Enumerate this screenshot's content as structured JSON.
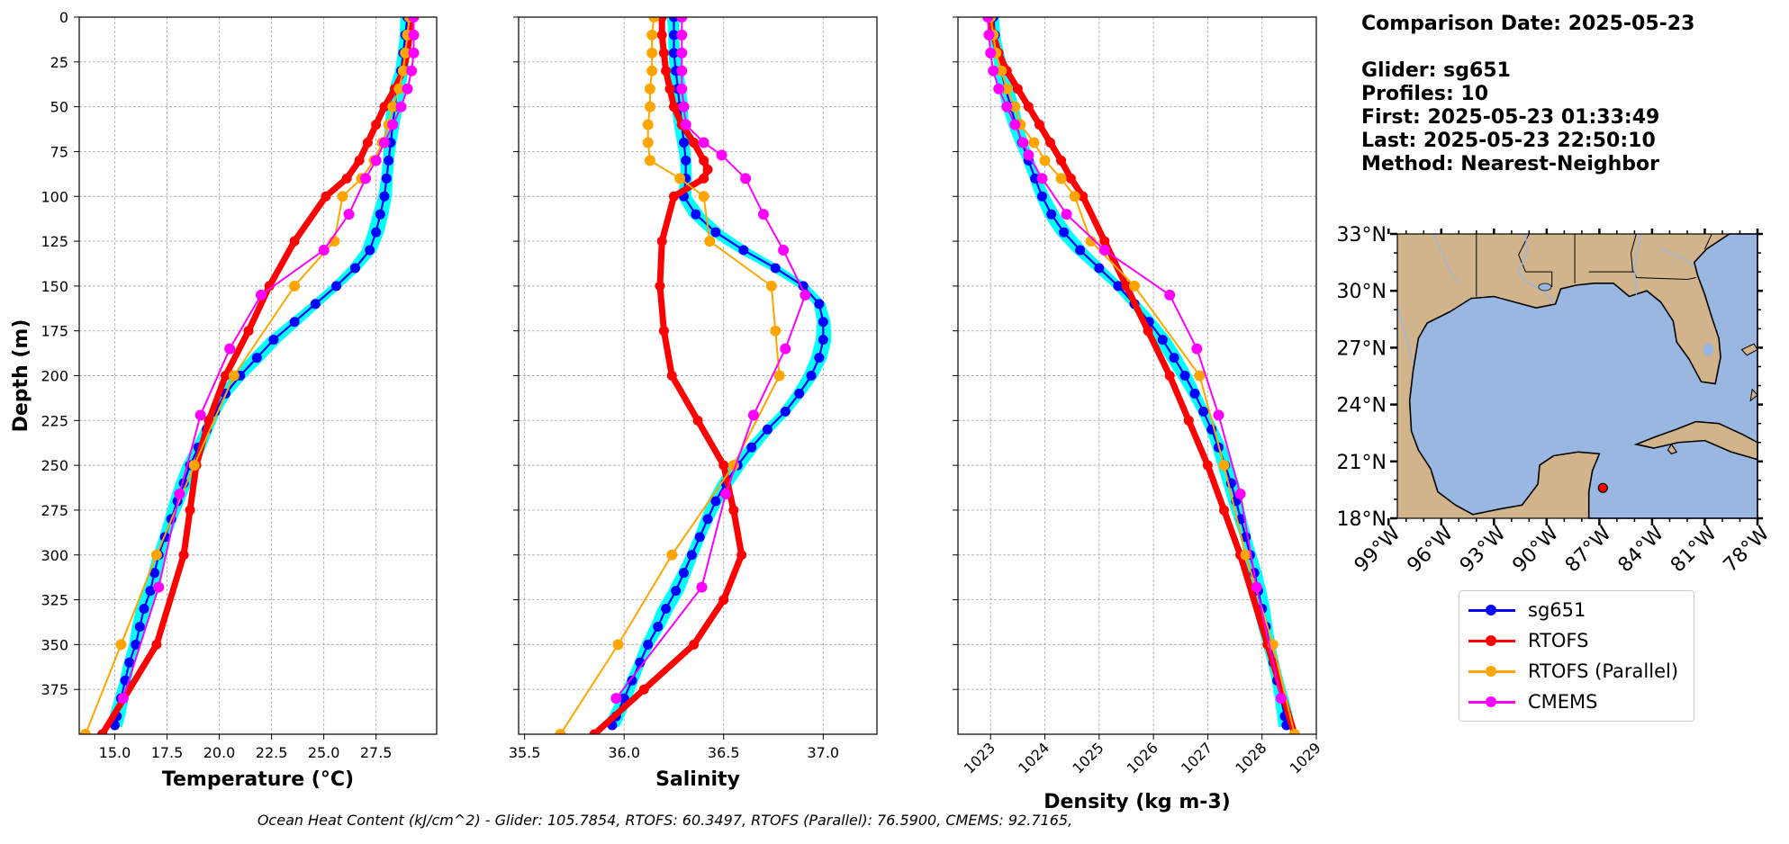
{
  "info": {
    "comparison_date": "Comparison Date: 2025-05-23",
    "glider": "Glider: sg651",
    "profiles": "Profiles: 10",
    "first": "First: 2025-05-23 01:33:49",
    "last": "Last: 2025-05-23 22:50:10",
    "method": "Method: Nearest-Neighbor"
  },
  "footer": "Ocean Heat Content (kJ/cm^2) - Glider: 105.7854,  RTOFS: 60.3497,  RTOFS (Parallel): 76.5900,  CMEMS: 92.7165,",
  "colors": {
    "sg651": "#0000ff",
    "sg651_spread": "#00ffff",
    "RTOFS": "#ff0000",
    "RTOFS_par": "#ffa500",
    "CMEMS": "#ff00ff",
    "land": "#d2b48c",
    "water": "#9ab7e2",
    "grid": "#b0b0b0"
  },
  "legend": {
    "items": [
      {
        "label": "sg651",
        "color": "#0000ff"
      },
      {
        "label": "RTOFS",
        "color": "#ff0000"
      },
      {
        "label": "RTOFS (Parallel)",
        "color": "#ffa500"
      },
      {
        "label": "CMEMS",
        "color": "#ff00ff"
      }
    ]
  },
  "chart_data": [
    {
      "type": "line",
      "xlabel": "Temperature (°C)",
      "ylabel": "Depth (m)",
      "xlim": [
        13.3,
        30.4
      ],
      "ylim": [
        400,
        0
      ],
      "xticks": [
        "15.0",
        "17.5",
        "20.0",
        "22.5",
        "25.0",
        "27.5"
      ],
      "yticks": [
        "0",
        "25",
        "50",
        "75",
        "100",
        "125",
        "150",
        "175",
        "200",
        "225",
        "250",
        "275",
        "300",
        "325",
        "350",
        "375"
      ],
      "grid": true,
      "series": [
        {
          "name": "sg651",
          "depth": [
            0,
            10,
            20,
            30,
            40,
            50,
            60,
            70,
            80,
            90,
            100,
            110,
            120,
            130,
            140,
            150,
            160,
            170,
            180,
            190,
            200,
            210,
            220,
            230,
            240,
            250,
            260,
            270,
            280,
            290,
            300,
            310,
            320,
            330,
            340,
            350,
            360,
            370,
            380,
            390,
            395
          ],
          "values": [
            29.0,
            28.9,
            28.8,
            28.7,
            28.5,
            28.4,
            28.3,
            28.2,
            28.1,
            28.0,
            27.9,
            27.7,
            27.5,
            27.2,
            26.5,
            25.6,
            24.6,
            23.6,
            22.6,
            21.8,
            21.0,
            20.3,
            19.8,
            19.4,
            19.0,
            18.6,
            18.3,
            18.0,
            17.7,
            17.4,
            17.1,
            16.9,
            16.7,
            16.4,
            16.2,
            16.0,
            15.7,
            15.5,
            15.3,
            15.1,
            15.0
          ]
        },
        {
          "name": "RTOFS",
          "depth": [
            0,
            10,
            20,
            30,
            40,
            50,
            60,
            70,
            80,
            90,
            100,
            125,
            150,
            175,
            200,
            225,
            250,
            275,
            300,
            350,
            400
          ],
          "values": [
            29.2,
            29.1,
            29.0,
            28.8,
            28.4,
            27.9,
            27.5,
            27.1,
            26.7,
            26.1,
            25.1,
            23.6,
            22.4,
            21.4,
            20.3,
            19.5,
            18.9,
            18.6,
            18.3,
            17.0,
            14.4
          ]
        },
        {
          "name": "RTOFS (Parallel)",
          "depth": [
            0,
            10,
            20,
            30,
            40,
            50,
            60,
            70,
            80,
            90,
            100,
            125,
            150,
            200,
            250,
            300,
            350,
            400
          ],
          "values": [
            29.1,
            29.0,
            28.9,
            28.8,
            28.6,
            28.3,
            28.1,
            27.8,
            27.4,
            26.8,
            25.9,
            25.5,
            23.6,
            20.7,
            18.8,
            17.0,
            15.3,
            13.6
          ]
        },
        {
          "name": "CMEMS",
          "depth": [
            0,
            10,
            20,
            30,
            40,
            50,
            60,
            70,
            80,
            90,
            110,
            130,
            155,
            185,
            222,
            266,
            318,
            380
          ],
          "values": [
            29.3,
            29.3,
            29.3,
            29.2,
            29.0,
            28.7,
            28.3,
            27.9,
            27.5,
            27.0,
            26.2,
            25.0,
            22.0,
            20.5,
            19.1,
            18.1,
            17.1,
            15.4
          ]
        }
      ]
    },
    {
      "type": "line",
      "xlabel": "Salinity",
      "ylabel": "",
      "xlim": [
        35.47,
        37.27
      ],
      "ylim": [
        400,
        0
      ],
      "xticks": [
        "35.5",
        "36.0",
        "36.5",
        "37.0"
      ],
      "grid": true,
      "series": [
        {
          "name": "sg651",
          "depth": [
            0,
            10,
            20,
            30,
            40,
            50,
            60,
            70,
            80,
            90,
            100,
            110,
            120,
            130,
            140,
            150,
            160,
            170,
            180,
            190,
            200,
            210,
            220,
            230,
            240,
            250,
            260,
            270,
            280,
            290,
            300,
            310,
            320,
            330,
            340,
            350,
            360,
            370,
            380,
            390,
            395
          ],
          "values": [
            36.25,
            36.25,
            36.25,
            36.26,
            36.27,
            36.28,
            36.29,
            36.3,
            36.31,
            36.31,
            36.3,
            36.36,
            36.46,
            36.6,
            36.76,
            36.9,
            36.98,
            37.0,
            37.0,
            36.98,
            36.94,
            36.88,
            36.81,
            36.72,
            36.64,
            36.57,
            36.51,
            36.46,
            36.42,
            36.38,
            36.34,
            36.3,
            36.26,
            36.21,
            36.17,
            36.12,
            36.08,
            36.04,
            36.0,
            35.96,
            35.94
          ]
        },
        {
          "name": "RTOFS",
          "depth": [
            0,
            10,
            20,
            30,
            40,
            50,
            60,
            70,
            80,
            85,
            90,
            100,
            125,
            150,
            175,
            200,
            225,
            250,
            275,
            300,
            325,
            350,
            375,
            400
          ],
          "values": [
            36.19,
            36.19,
            36.2,
            36.21,
            36.23,
            36.25,
            36.29,
            36.35,
            36.4,
            36.42,
            36.4,
            36.25,
            36.19,
            36.18,
            36.2,
            36.24,
            36.37,
            36.5,
            36.55,
            36.59,
            36.5,
            36.35,
            36.1,
            35.85
          ]
        },
        {
          "name": "RTOFS (Parallel)",
          "depth": [
            0,
            10,
            20,
            30,
            40,
            50,
            60,
            70,
            80,
            90,
            100,
            125,
            150,
            175,
            200,
            250,
            300,
            350,
            400
          ],
          "values": [
            36.15,
            36.14,
            36.14,
            36.14,
            36.13,
            36.13,
            36.12,
            36.12,
            36.13,
            36.28,
            36.4,
            36.43,
            36.74,
            36.76,
            36.78,
            36.55,
            36.24,
            35.97,
            35.68
          ]
        },
        {
          "name": "CMEMS",
          "depth": [
            0,
            10,
            20,
            30,
            40,
            50,
            60,
            70,
            77,
            90,
            110,
            130,
            155,
            185,
            222,
            266,
            318,
            380
          ],
          "values": [
            36.29,
            36.29,
            36.29,
            36.29,
            36.29,
            36.3,
            36.31,
            36.4,
            36.49,
            36.61,
            36.7,
            36.8,
            36.91,
            36.81,
            36.65,
            36.51,
            36.39,
            35.96
          ]
        }
      ]
    },
    {
      "type": "line",
      "xlabel": "Density (kg m-3)",
      "ylabel": "",
      "xlim": [
        1022.4,
        1029.0
      ],
      "ylim": [
        400,
        0
      ],
      "xticks": [
        "1023",
        "1024",
        "1025",
        "1026",
        "1027",
        "1028",
        "1029"
      ],
      "grid": true,
      "series": [
        {
          "name": "sg651",
          "depth": [
            0,
            10,
            20,
            30,
            40,
            50,
            60,
            70,
            80,
            90,
            100,
            110,
            120,
            130,
            140,
            150,
            160,
            170,
            180,
            190,
            200,
            210,
            220,
            230,
            240,
            250,
            260,
            270,
            280,
            290,
            300,
            310,
            320,
            330,
            340,
            350,
            360,
            370,
            380,
            390,
            395
          ],
          "values": [
            1023.05,
            1023.08,
            1023.13,
            1023.2,
            1023.28,
            1023.37,
            1023.47,
            1023.58,
            1023.7,
            1023.82,
            1023.95,
            1024.12,
            1024.35,
            1024.65,
            1025.0,
            1025.35,
            1025.65,
            1025.92,
            1026.17,
            1026.38,
            1026.58,
            1026.76,
            1026.92,
            1027.07,
            1027.2,
            1027.32,
            1027.43,
            1027.52,
            1027.61,
            1027.7,
            1027.78,
            1027.86,
            1027.93,
            1028.0,
            1028.07,
            1028.14,
            1028.21,
            1028.28,
            1028.35,
            1028.42,
            1028.45
          ]
        },
        {
          "name": "RTOFS",
          "depth": [
            0,
            10,
            20,
            30,
            40,
            50,
            60,
            70,
            80,
            90,
            100,
            125,
            150,
            175,
            200,
            225,
            250,
            275,
            300,
            350,
            400
          ],
          "values": [
            1022.98,
            1023.05,
            1023.15,
            1023.3,
            1023.5,
            1023.7,
            1023.9,
            1024.1,
            1024.3,
            1024.48,
            1024.7,
            1025.1,
            1025.5,
            1025.9,
            1026.3,
            1026.65,
            1027.0,
            1027.3,
            1027.6,
            1028.1,
            1028.6
          ]
        },
        {
          "name": "RTOFS (Parallel)",
          "depth": [
            0,
            10,
            20,
            30,
            40,
            50,
            60,
            70,
            80,
            90,
            100,
            125,
            150,
            200,
            250,
            300,
            350,
            400
          ],
          "values": [
            1023.0,
            1023.05,
            1023.1,
            1023.2,
            1023.3,
            1023.45,
            1023.55,
            1023.8,
            1024.0,
            1024.3,
            1024.55,
            1024.85,
            1025.65,
            1026.85,
            1027.3,
            1027.7,
            1028.2,
            1028.6
          ]
        },
        {
          "name": "CMEMS",
          "depth": [
            0,
            10,
            20,
            30,
            40,
            50,
            60,
            70,
            77,
            90,
            110,
            130,
            155,
            185,
            222,
            266,
            318,
            380
          ],
          "values": [
            1022.95,
            1022.97,
            1023.0,
            1023.05,
            1023.15,
            1023.3,
            1023.45,
            1023.6,
            1023.7,
            1023.95,
            1024.4,
            1025.1,
            1026.3,
            1026.8,
            1027.2,
            1027.6,
            1027.9,
            1028.35
          ]
        }
      ]
    }
  ],
  "map": {
    "lat_labels": [
      "33°N",
      "30°N",
      "27°N",
      "24°N",
      "21°N",
      "18°N"
    ],
    "lon_labels": [
      "99°W",
      "96°W",
      "93°W",
      "90°W",
      "87°W",
      "84°W",
      "81°W",
      "78°W"
    ],
    "extent": {
      "lon": [
        -98.5,
        -78.0
      ],
      "lat": [
        18.0,
        33.0
      ]
    },
    "marker": {
      "lon": -86.8,
      "lat": 19.6
    }
  }
}
